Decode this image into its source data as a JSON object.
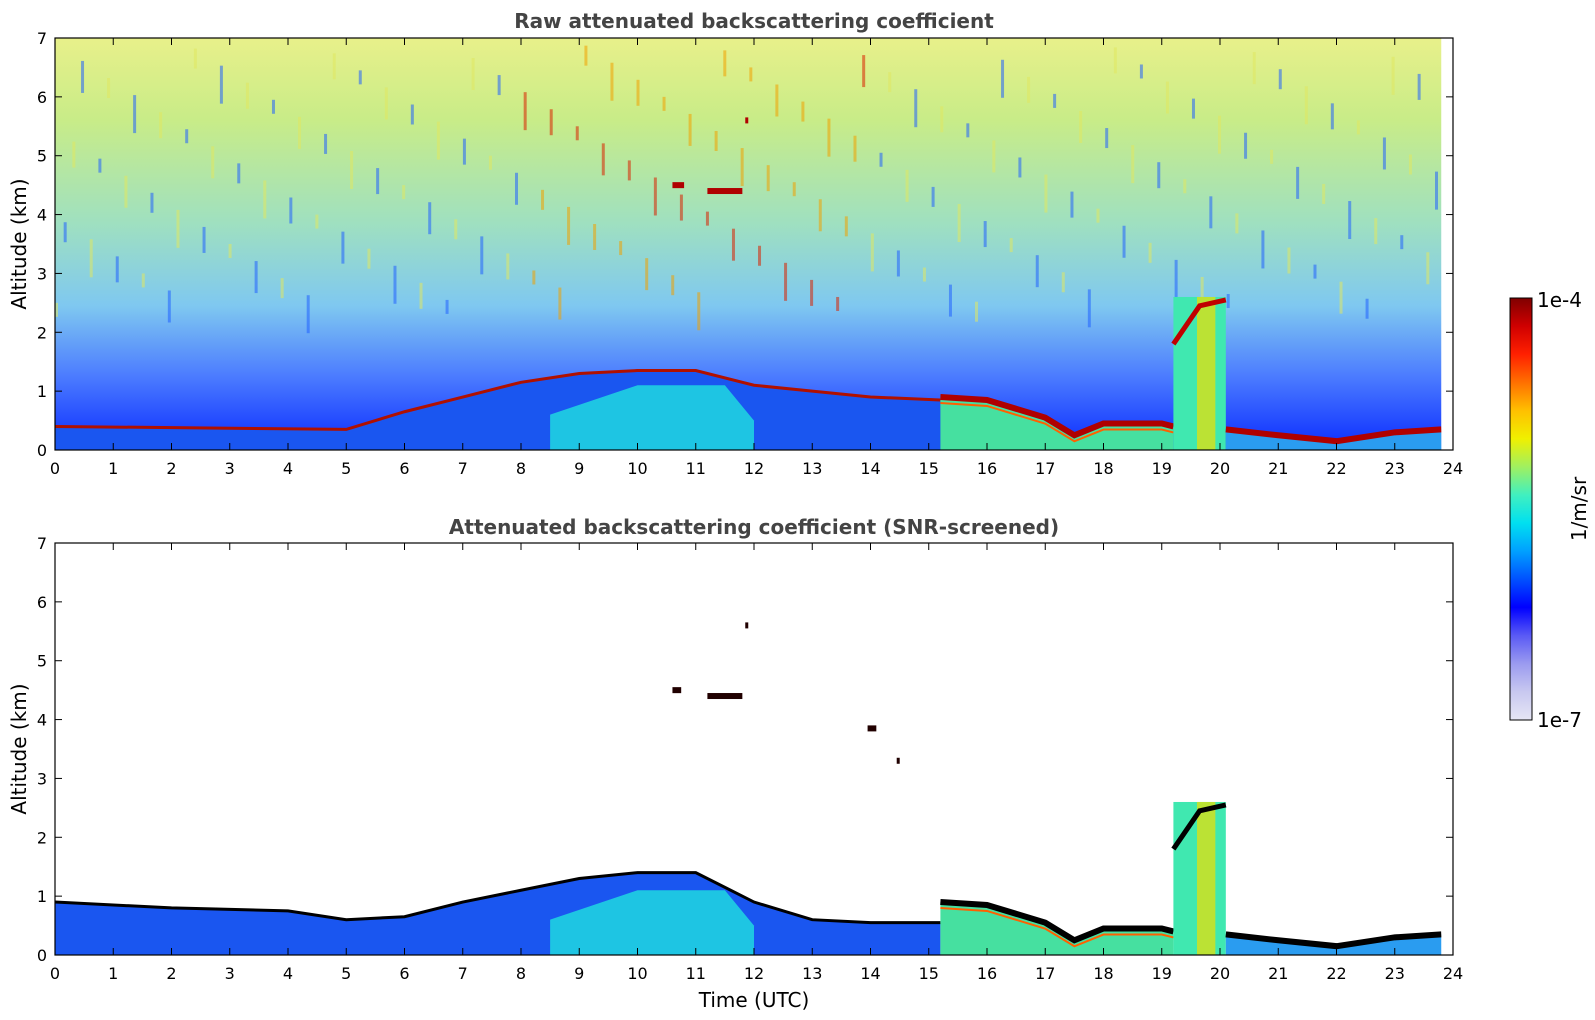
{
  "figure": {
    "colorbar": {
      "max_label": "1e-4",
      "min_label": "1e-7",
      "unit_label": "1/m/sr",
      "scale": "log",
      "range": [
        1e-07,
        0.0001
      ],
      "colors": [
        "#e6e6f5",
        "#c8c8f0",
        "#9b9bf0",
        "#5a5af5",
        "#0000ff",
        "#0050ff",
        "#00a0ff",
        "#00e0f0",
        "#40f0c0",
        "#a0f060",
        "#f0f000",
        "#ffc000",
        "#ff7000",
        "#ff2000",
        "#d00000",
        "#800000"
      ]
    },
    "colors": {
      "white": "#ffffff",
      "title_text": "#444444",
      "noise_light": "#cfe8c0"
    }
  },
  "chart_data": [
    {
      "type": "heatmap",
      "title": "Raw attenuated backscattering coefficient",
      "xlabel": "",
      "ylabel": "Altitude (km)",
      "xlim": [
        0,
        24
      ],
      "ylim": [
        0,
        7
      ],
      "xticks": [
        0,
        1,
        2,
        3,
        4,
        5,
        6,
        7,
        8,
        9,
        10,
        11,
        12,
        13,
        14,
        15,
        16,
        17,
        18,
        19,
        20,
        21,
        22,
        23,
        24
      ],
      "yticks": [
        0,
        1,
        2,
        3,
        4,
        5,
        6,
        7
      ],
      "data_end_time": 23.8,
      "layers": [
        {
          "kind": "boundary_layer",
          "x": [
            0,
            5,
            6,
            7,
            8,
            9,
            10,
            11,
            12,
            13,
            14,
            15.2
          ],
          "top_km": [
            0.4,
            0.35,
            0.65,
            0.9,
            1.15,
            1.3,
            1.35,
            1.35,
            1.1,
            1.0,
            0.9,
            0.85
          ],
          "level": "low"
        },
        {
          "kind": "aerosol_layer_top",
          "x": [
            15.2,
            16,
            17,
            17.5,
            18,
            19,
            19.2
          ],
          "top_km": [
            0.9,
            0.85,
            0.55,
            0.25,
            0.45,
            0.45,
            0.4
          ],
          "level": "high"
        },
        {
          "kind": "elevated_layer",
          "x": [
            19.2,
            20.1
          ],
          "base_km": 0,
          "top_km": 2.6,
          "level": "high"
        },
        {
          "kind": "surface_layer",
          "x": [
            20.1,
            21,
            22,
            23,
            23.8
          ],
          "top_km": [
            0.35,
            0.25,
            0.15,
            0.3,
            0.35
          ],
          "level": "high"
        },
        {
          "kind": "cloud_fragment",
          "x": [
            11.2,
            11.8
          ],
          "alt_km": 4.4,
          "level": "max"
        },
        {
          "kind": "cloud_fragment",
          "x": [
            10.6,
            10.8
          ],
          "alt_km": 4.5,
          "level": "max"
        },
        {
          "kind": "cloud_fragment",
          "x": [
            11.85,
            11.9
          ],
          "alt_km": 5.6,
          "level": "max"
        }
      ],
      "background": "noise, values increase with altitude; stronger near 8-14 UTC above 3 km"
    },
    {
      "type": "heatmap",
      "title": "Attenuated backscattering coefficient (SNR-screened)",
      "xlabel": "Time (UTC)",
      "ylabel": "Altitude (km)",
      "xlim": [
        0,
        24
      ],
      "ylim": [
        0,
        7
      ],
      "xticks": [
        0,
        1,
        2,
        3,
        4,
        5,
        6,
        7,
        8,
        9,
        10,
        11,
        12,
        13,
        14,
        15,
        16,
        17,
        18,
        19,
        20,
        21,
        22,
        23,
        24
      ],
      "yticks": [
        0,
        1,
        2,
        3,
        4,
        5,
        6,
        7
      ],
      "data_end_time": 23.8,
      "layers": [
        {
          "kind": "boundary_layer",
          "x": [
            0,
            2,
            4,
            5,
            6,
            7,
            8,
            9,
            10,
            11,
            12,
            13,
            14,
            15.2
          ],
          "top_km": [
            0.9,
            0.8,
            0.75,
            0.6,
            0.65,
            0.9,
            1.1,
            1.3,
            1.4,
            1.4,
            0.9,
            0.6,
            0.55,
            0.55
          ],
          "level": "low"
        },
        {
          "kind": "aerosol_layer_top",
          "x": [
            15.2,
            16,
            17,
            17.5,
            18,
            19,
            19.2
          ],
          "top_km": [
            0.9,
            0.85,
            0.55,
            0.25,
            0.45,
            0.45,
            0.4
          ],
          "level": "high"
        },
        {
          "kind": "elevated_layer",
          "x": [
            19.2,
            20.1
          ],
          "base_km": 0,
          "top_km": 2.6,
          "level": "high"
        },
        {
          "kind": "surface_layer",
          "x": [
            20.1,
            21,
            22,
            23,
            23.8
          ],
          "top_km": [
            0.35,
            0.25,
            0.15,
            0.3,
            0.35
          ],
          "level": "high"
        },
        {
          "kind": "cloud_fragment",
          "x": [
            11.2,
            11.8
          ],
          "alt_km": 4.4,
          "level": "max"
        },
        {
          "kind": "cloud_fragment",
          "x": [
            10.6,
            10.75
          ],
          "alt_km": 4.5,
          "level": "max"
        },
        {
          "kind": "cloud_fragment",
          "x": [
            11.85,
            11.9
          ],
          "alt_km": 5.6,
          "level": "max"
        },
        {
          "kind": "cloud_fragment",
          "x": [
            13.95,
            14.1
          ],
          "alt_km": 3.85,
          "level": "max"
        },
        {
          "kind": "cloud_fragment",
          "x": [
            14.45,
            14.5
          ],
          "alt_km": 3.3,
          "level": "max"
        }
      ],
      "background": "screened to white above signal"
    }
  ]
}
